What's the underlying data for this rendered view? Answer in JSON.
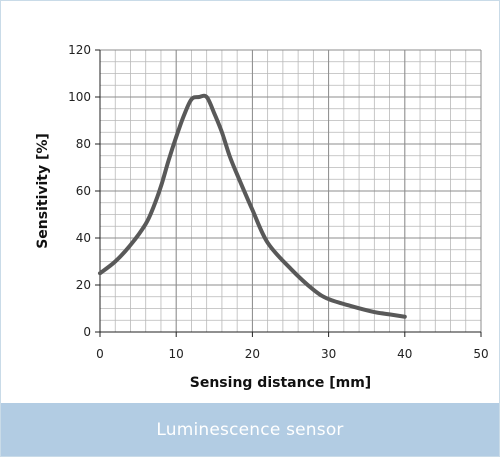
{
  "caption": "Luminescence sensor",
  "colors": {
    "curve": "#595959",
    "grid": "#b8b8b8",
    "axis": "#222222",
    "caption_bg": "#b2cce3",
    "caption_text": "#ffffff",
    "border": "#c9dbe8"
  },
  "chart_data": {
    "type": "line",
    "title": "",
    "xlabel": "Sensing distance [mm]",
    "ylabel": "Sensitivity [%]",
    "xlim": [
      0,
      50
    ],
    "ylim": [
      0,
      120
    ],
    "xticks": [
      0,
      10,
      20,
      30,
      40,
      50
    ],
    "yticks": [
      0,
      20,
      40,
      60,
      80,
      100,
      120
    ],
    "x_minor_step": 2,
    "y_minor_step": 5,
    "grid": true,
    "series": [
      {
        "x": [
          0,
          2,
          4,
          6,
          7,
          8,
          9,
          10,
          11,
          12,
          13,
          14,
          15,
          16,
          17,
          18,
          20,
          22,
          25,
          28,
          30,
          33,
          36,
          38,
          40
        ],
        "y": [
          25,
          30,
          37,
          46,
          53,
          62,
          73,
          83,
          92,
          99,
          100,
          100,
          93,
          85,
          75,
          67,
          52,
          38,
          27,
          18,
          14,
          11,
          8.5,
          7.5,
          6.5
        ]
      }
    ]
  }
}
